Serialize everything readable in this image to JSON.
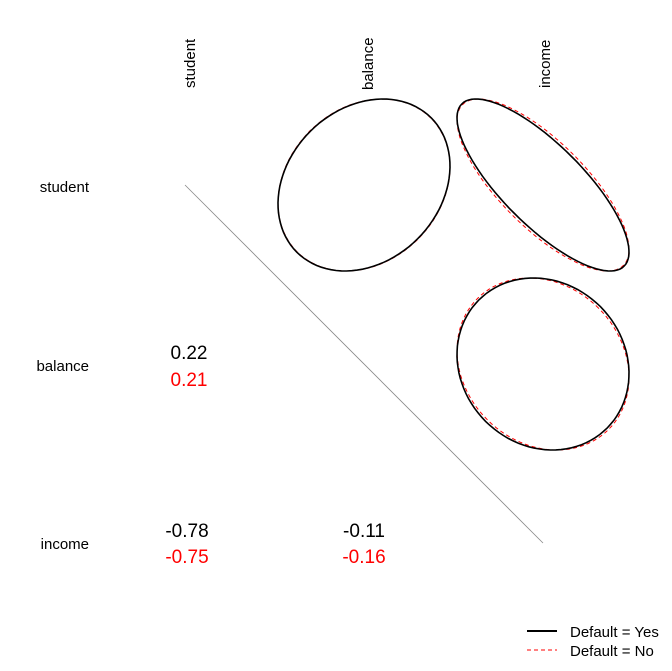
{
  "chart_data": {
    "type": "correlation-matrix",
    "variables": [
      "student",
      "balance",
      "income"
    ],
    "groups": [
      {
        "name": "Default = Yes",
        "color": "#000000",
        "line": "solid"
      },
      {
        "name": "Default = No",
        "color": "#ff0000",
        "line": "dashed"
      }
    ],
    "correlations": [
      {
        "row": "balance",
        "col": "student",
        "yes": "0.22",
        "no": "0.21"
      },
      {
        "row": "income",
        "col": "student",
        "yes": "-0.78",
        "no": "-0.75"
      },
      {
        "row": "income",
        "col": "balance",
        "yes": "-0.11",
        "no": "-0.16"
      }
    ],
    "ellipses": [
      {
        "row": "student",
        "col": "balance",
        "r_yes": 0.22,
        "r_no": 0.21
      },
      {
        "row": "student",
        "col": "income",
        "r_yes": -0.78,
        "r_no": -0.75
      },
      {
        "row": "balance",
        "col": "income",
        "r_yes": -0.11,
        "r_no": -0.16
      }
    ],
    "legend_position": "bottom-right"
  }
}
